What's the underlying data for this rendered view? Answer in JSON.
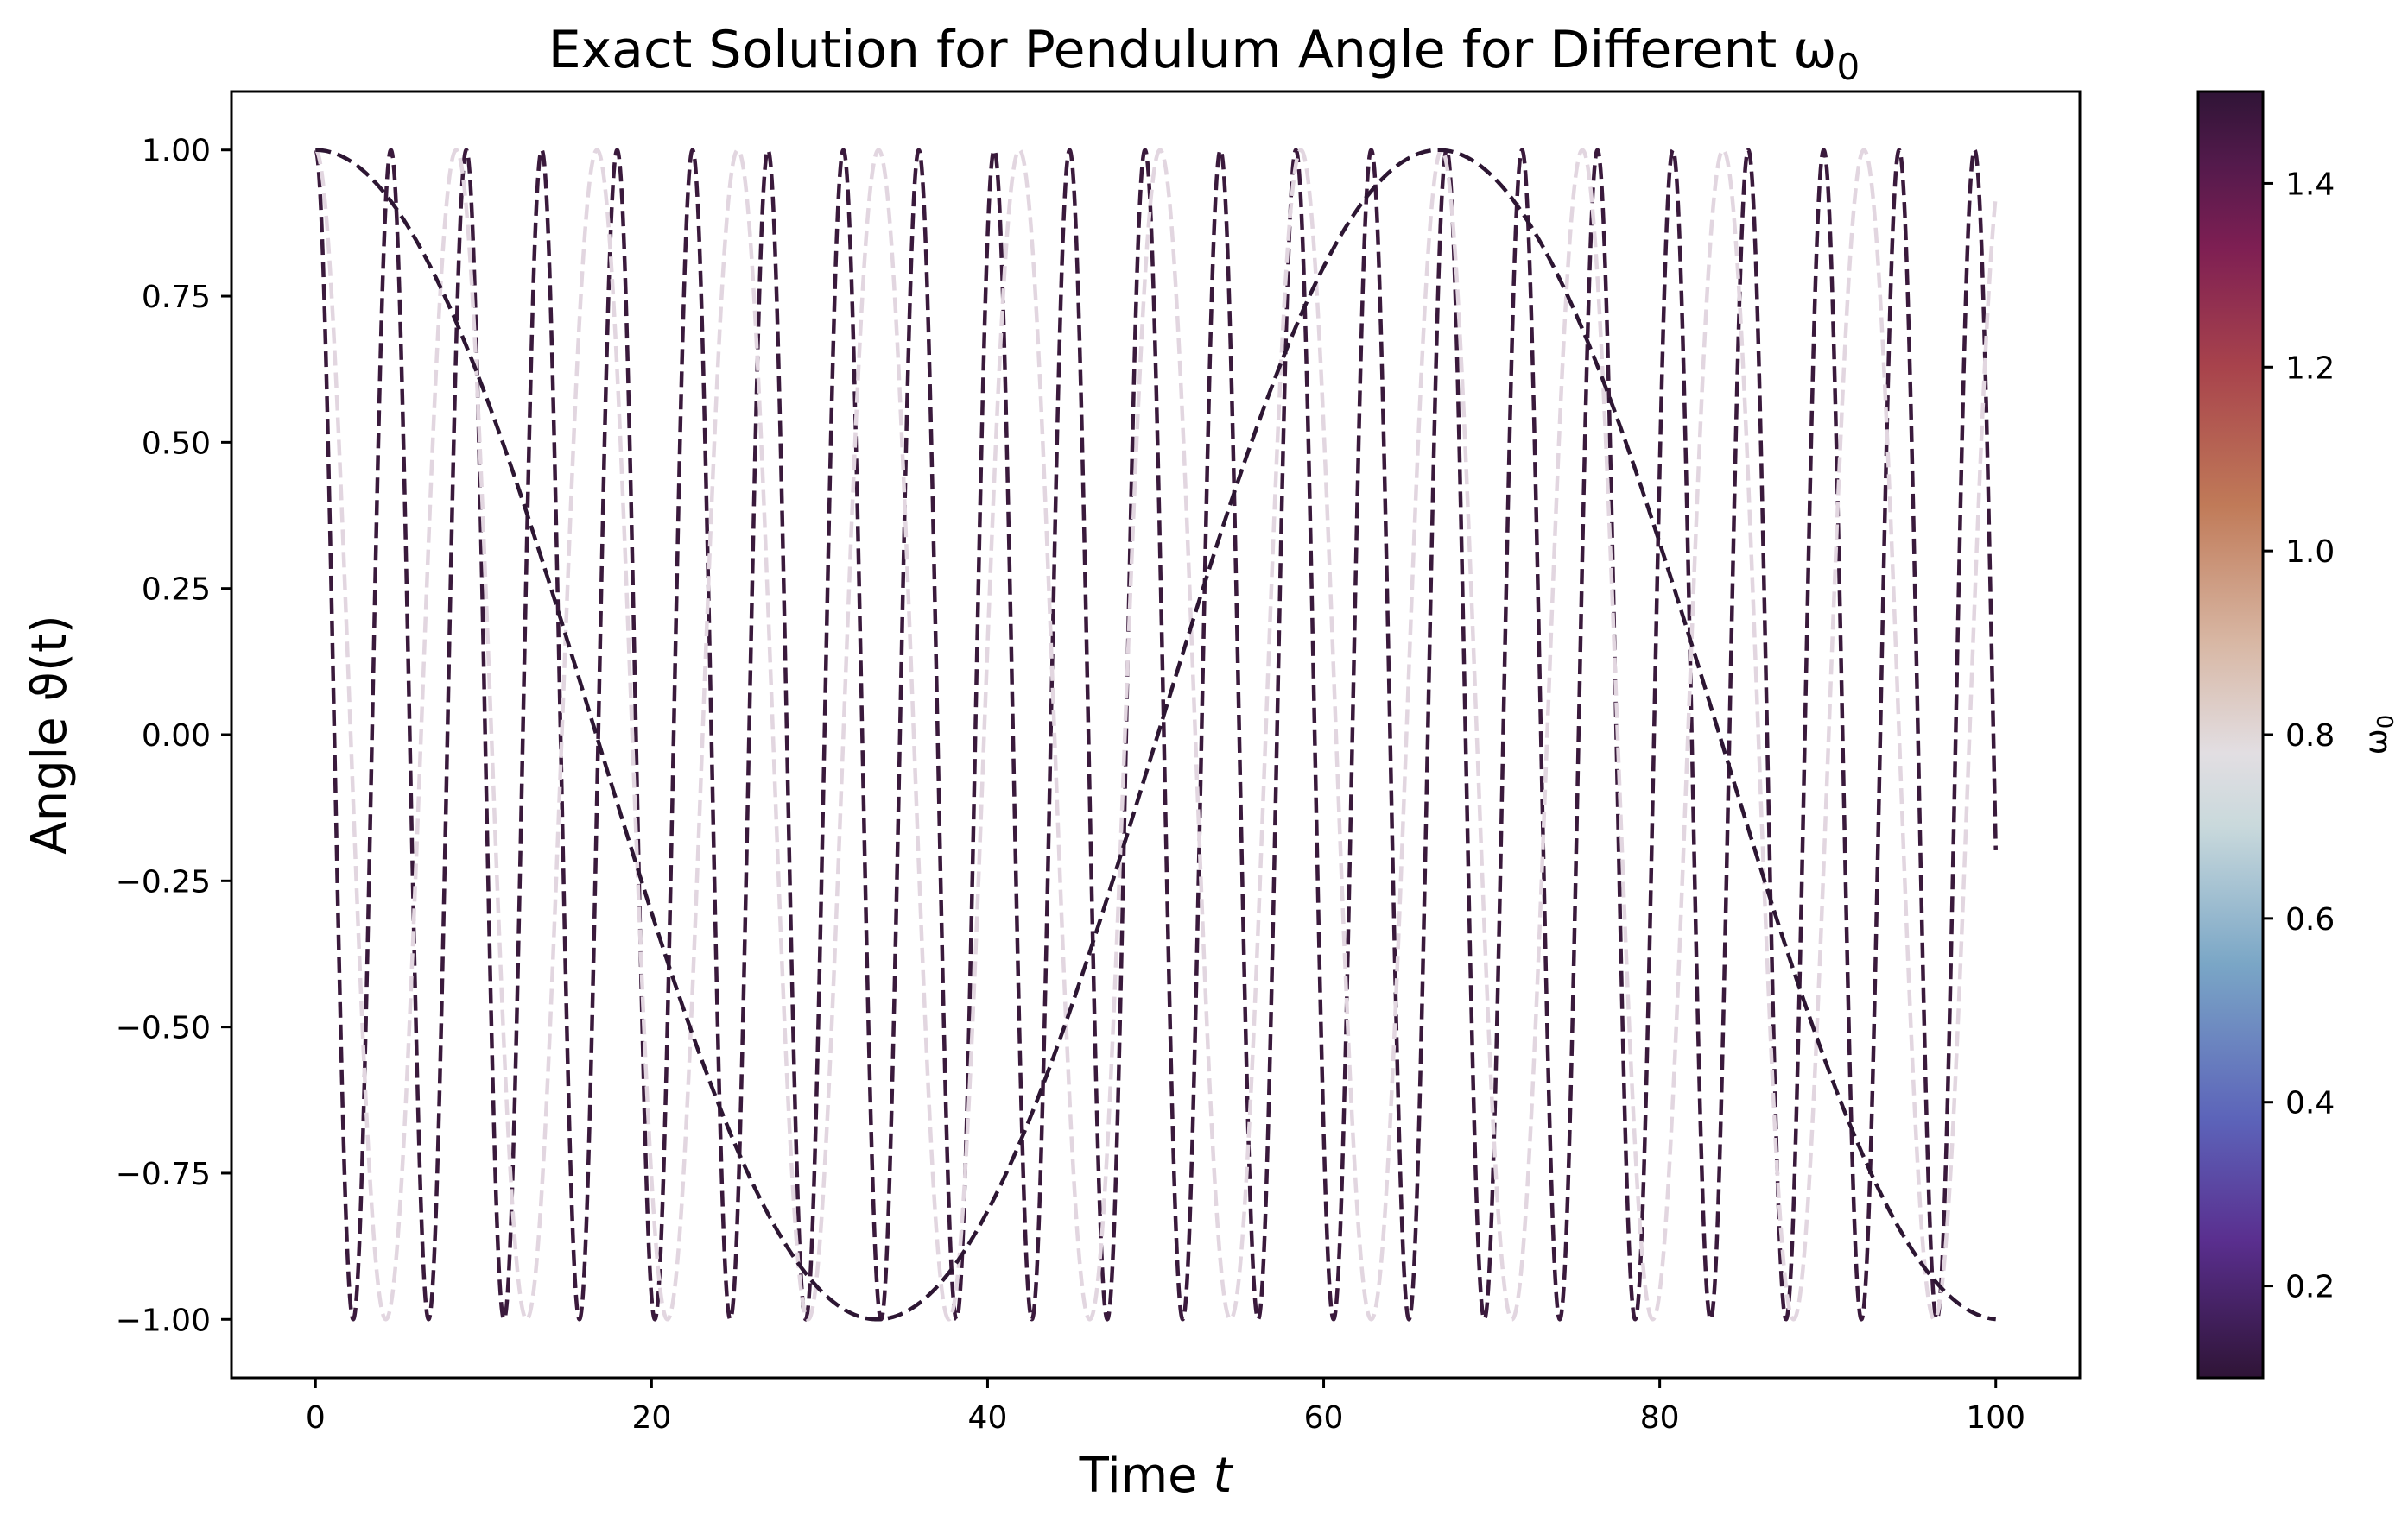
{
  "chart_data": {
    "type": "line",
    "title": "Exact Solution for Pendulum Angle for Different ω",
    "title_subscript": "0",
    "xlabel": "Time",
    "xlabel_var": "t",
    "ylabel": "Angle ϑ(t)",
    "xlim": [
      -5,
      105
    ],
    "ylim": [
      -1.1,
      1.1
    ],
    "xticks": [
      "0",
      "20",
      "40",
      "60",
      "80",
      "100"
    ],
    "xtick_values": [
      0,
      20,
      40,
      60,
      80,
      100
    ],
    "yticks": [
      "1.00",
      "0.75",
      "0.50",
      "0.25",
      "0.00",
      "−0.25",
      "−0.50",
      "−0.75",
      "−1.00"
    ],
    "ytick_values": [
      1.0,
      0.75,
      0.5,
      0.25,
      0.0,
      -0.25,
      -0.5,
      -0.75,
      -1.0
    ],
    "grid": false,
    "line_style": "dashed",
    "function": "cos(omega0 * t)",
    "t_range": [
      0,
      100
    ],
    "series": [
      {
        "omega0": 1.4,
        "color": "#3a1a3c"
      },
      {
        "omega0": 0.75,
        "color": "#e2d6e0"
      },
      {
        "omega0": 0.094,
        "color": "#2d1633"
      }
    ],
    "colorbar": {
      "label": "ω",
      "label_subscript": "0",
      "range": [
        0.1,
        1.5
      ],
      "ticks": [
        "0.2",
        "0.4",
        "0.6",
        "0.8",
        "1.0",
        "1.2",
        "1.4"
      ],
      "tick_values": [
        0.2,
        0.4,
        0.6,
        0.8,
        1.0,
        1.2,
        1.4
      ],
      "colormap": "twilight_shifted",
      "stops": [
        {
          "v": 0.1,
          "color": "#2f1436"
        },
        {
          "v": 0.25,
          "color": "#5a2f8f"
        },
        {
          "v": 0.38,
          "color": "#5c63b9"
        },
        {
          "v": 0.55,
          "color": "#7aa6c6"
        },
        {
          "v": 0.7,
          "color": "#c9d9dc"
        },
        {
          "v": 0.78,
          "color": "#e2dee2"
        },
        {
          "v": 0.9,
          "color": "#d8b7a4"
        },
        {
          "v": 1.05,
          "color": "#c07a58"
        },
        {
          "v": 1.2,
          "color": "#a8434c"
        },
        {
          "v": 1.33,
          "color": "#7e1f53"
        },
        {
          "v": 1.42,
          "color": "#541a4c"
        },
        {
          "v": 1.5,
          "color": "#2f1436"
        }
      ]
    }
  }
}
